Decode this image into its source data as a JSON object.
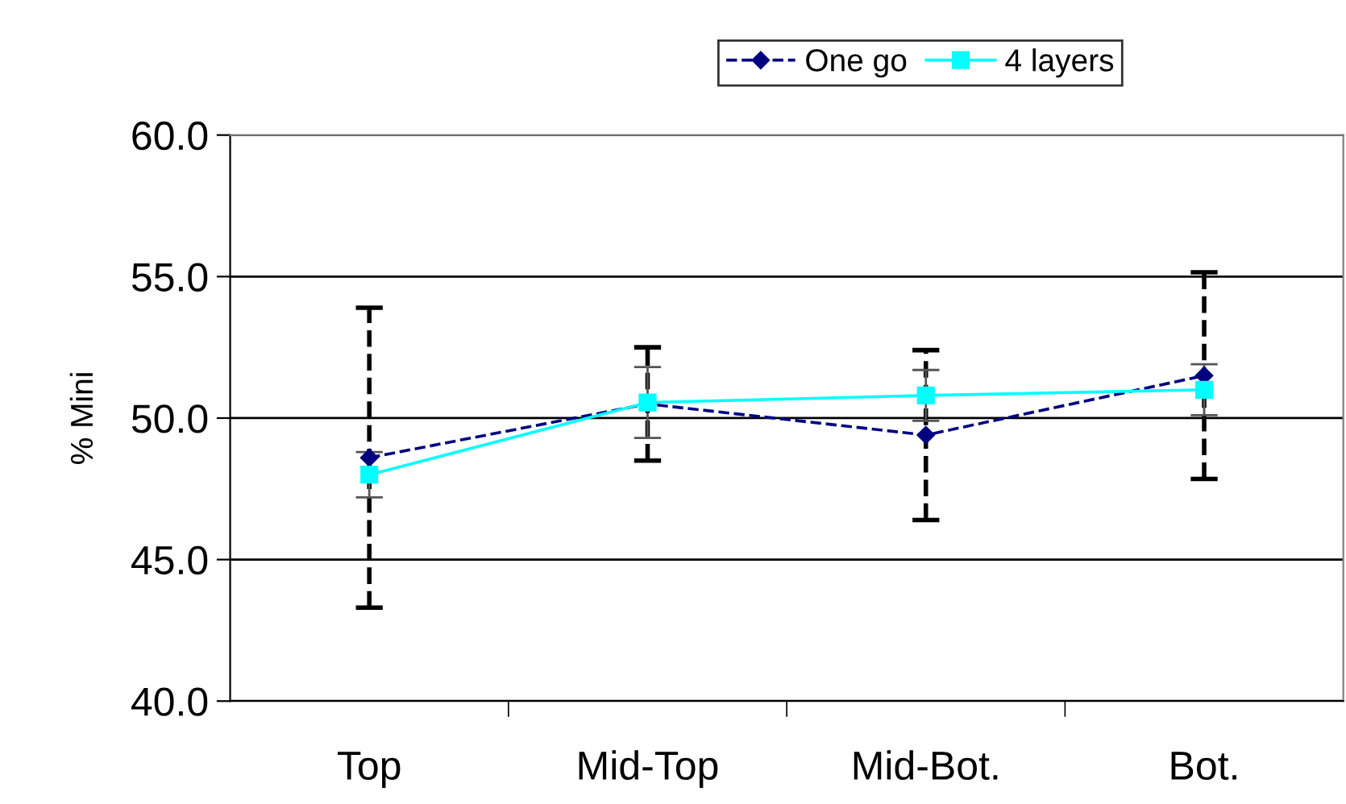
{
  "chart_data": {
    "type": "line",
    "ylabel": "% Mini",
    "categories": [
      "Top",
      "Mid-Top",
      "Mid-Bot.",
      "Bot."
    ],
    "series": [
      {
        "name": "One go",
        "color": "#000080",
        "marker": "diamond",
        "line_style": "dashed",
        "values": [
          48.6,
          50.5,
          49.4,
          51.5
        ],
        "errors": [
          5.3,
          2.0,
          3.0,
          3.65
        ]
      },
      {
        "name": "4 layers",
        "color": "#00ffff",
        "marker": "square",
        "line_style": "solid",
        "values": [
          48.0,
          50.55,
          50.8,
          51.0
        ],
        "errors": [
          0.8,
          1.25,
          0.9,
          0.9
        ]
      }
    ],
    "ylim": [
      40,
      60
    ],
    "yticks": [
      {
        "value": 40,
        "label": "40.0"
      },
      {
        "value": 45,
        "label": "45.0"
      },
      {
        "value": 50,
        "label": "50.0"
      },
      {
        "value": 55,
        "label": "55.0"
      },
      {
        "value": 60,
        "label": "60.0"
      }
    ],
    "grid": "y",
    "legend": "top"
  }
}
